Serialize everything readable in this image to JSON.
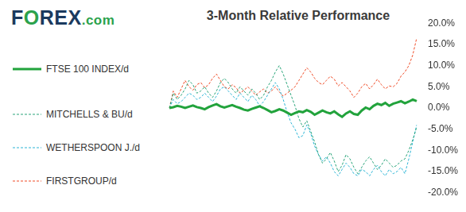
{
  "chart_data": {
    "type": "line",
    "logo": "FOREX.com",
    "title": "3-Month Relative Performance",
    "categories": [
      null,
      null,
      null,
      null,
      null,
      null,
      null,
      null,
      null,
      null,
      null,
      null,
      null,
      null,
      null,
      null,
      null,
      null,
      null,
      null,
      null,
      null,
      null,
      null,
      null,
      null,
      null,
      null,
      null,
      null,
      null,
      null,
      null,
      null,
      null,
      null,
      null,
      null,
      null,
      null,
      null,
      null,
      null,
      null,
      null,
      null,
      null,
      null,
      null,
      null,
      null,
      null,
      null,
      null,
      null,
      null,
      null,
      null,
      null,
      null,
      null,
      null,
      null,
      null
    ],
    "series": [
      {
        "name": "FTSE 100 INDEX/d",
        "color": "#22a33c",
        "line_style": "solid",
        "values": [
          0,
          0.2,
          0.5,
          0.3,
          0,
          0.3,
          0.6,
          0.2,
          0,
          -0.3,
          0.2,
          0.6,
          0.9,
          0.4,
          0.1,
          0.4,
          0.7,
          0.3,
          0,
          -0.4,
          -0.6,
          -0.2,
          0.1,
          0.4,
          0,
          -0.5,
          -1.0,
          -0.7,
          -0.3,
          -0.6,
          -1.1,
          -1.6,
          -1.2,
          -0.8,
          -1.0,
          -0.5,
          -0.9,
          -1.6,
          -1.1,
          -0.6,
          -1.0,
          -1.3,
          -0.8,
          -1.5,
          -2.1,
          -1.3,
          -0.8,
          -1.4,
          -1.6,
          -0.6,
          0.1,
          -0.3,
          0.5,
          1.0,
          0.7,
          1.2,
          0.5,
          1.0,
          1.3,
          1.6,
          1.1,
          1.5,
          2.0,
          1.6
        ]
      },
      {
        "name": "MITCHELLS & BU/d",
        "color": "#2aa57a",
        "line_style": "dashed",
        "values": [
          0,
          3.5,
          2.0,
          3.0,
          4.5,
          6.5,
          5.5,
          3.5,
          4.0,
          5.0,
          3.5,
          2.5,
          4.0,
          6.0,
          7.0,
          6.0,
          4.5,
          3.5,
          5.0,
          4.0,
          3.0,
          4.5,
          3.5,
          2.0,
          3.0,
          5.0,
          6.5,
          8.5,
          10.0,
          8.0,
          5.5,
          3.0,
          0.5,
          -2.5,
          -4.5,
          -3.0,
          -5.5,
          -8.0,
          -11.0,
          -13.0,
          -12.0,
          -10.5,
          -12.5,
          -15.0,
          -13.5,
          -11.0,
          -12.0,
          -14.0,
          -15.5,
          -14.0,
          -12.5,
          -11.5,
          -13.0,
          -14.5,
          -13.5,
          -12.0,
          -13.0,
          -14.0,
          -13.5,
          -12.5,
          -12.0,
          -10.0,
          -7.5,
          -4.5
        ]
      },
      {
        "name": "WETHERSPOON J./d",
        "color": "#2cb5d6",
        "line_style": "dashed",
        "values": [
          0,
          2.0,
          1.0,
          1.5,
          2.5,
          3.5,
          3.0,
          2.0,
          2.5,
          3.5,
          2.5,
          1.5,
          2.8,
          4.5,
          5.0,
          4.0,
          3.0,
          2.0,
          3.5,
          2.5,
          1.5,
          3.0,
          2.0,
          0.5,
          1.5,
          3.0,
          4.5,
          6.0,
          4.5,
          2.0,
          -1.0,
          -3.5,
          -5.0,
          -7.0,
          -6.5,
          -4.0,
          -6.0,
          -9.0,
          -11.0,
          -12.5,
          -11.5,
          -13.0,
          -15.0,
          -16.0,
          -14.5,
          -13.0,
          -14.0,
          -15.5,
          -16.0,
          -14.5,
          -15.0,
          -16.0,
          -14.5,
          -13.5,
          -15.0,
          -16.0,
          -14.5,
          -15.5,
          -15.0,
          -14.0,
          -15.5,
          -12.0,
          -8.0,
          -4.0
        ]
      },
      {
        "name": "FIRSTGROUP/d",
        "color": "#ef4b26",
        "line_style": "dashed",
        "values": [
          0,
          4.0,
          2.5,
          4.5,
          6.5,
          5.0,
          4.2,
          5.5,
          6.0,
          4.8,
          5.5,
          7.0,
          8.0,
          6.5,
          5.0,
          4.5,
          5.5,
          4.8,
          3.5,
          4.2,
          5.0,
          4.0,
          3.0,
          3.8,
          4.5,
          3.5,
          4.0,
          5.0,
          3.8,
          2.8,
          3.5,
          4.2,
          5.0,
          6.5,
          8.0,
          9.5,
          8.5,
          7.0,
          6.0,
          5.5,
          6.5,
          7.5,
          6.8,
          5.2,
          6.0,
          5.0,
          4.0,
          2.5,
          3.5,
          5.0,
          5.8,
          4.5,
          5.5,
          6.8,
          5.5,
          4.5,
          5.2,
          5.0,
          5.8,
          7.5,
          8.5,
          10.0,
          12.5,
          16.5
        ]
      }
    ],
    "ylim": [
      -20,
      20
    ],
    "yticks": [
      {
        "value": -20,
        "label": "-20.0%"
      },
      {
        "value": -15,
        "label": "-15.0%"
      },
      {
        "value": -10,
        "label": "-10.0%"
      },
      {
        "value": -5,
        "label": "-5.0%"
      },
      {
        "value": 0,
        "label": "0.0%"
      },
      {
        "value": 5,
        "label": "5.0%"
      },
      {
        "value": 10,
        "label": "10.0%"
      },
      {
        "value": 15,
        "label": "15.0%"
      },
      {
        "value": 20,
        "label": "20.0%"
      }
    ],
    "grid": false,
    "legend": "left",
    "tick_labels": "y"
  }
}
